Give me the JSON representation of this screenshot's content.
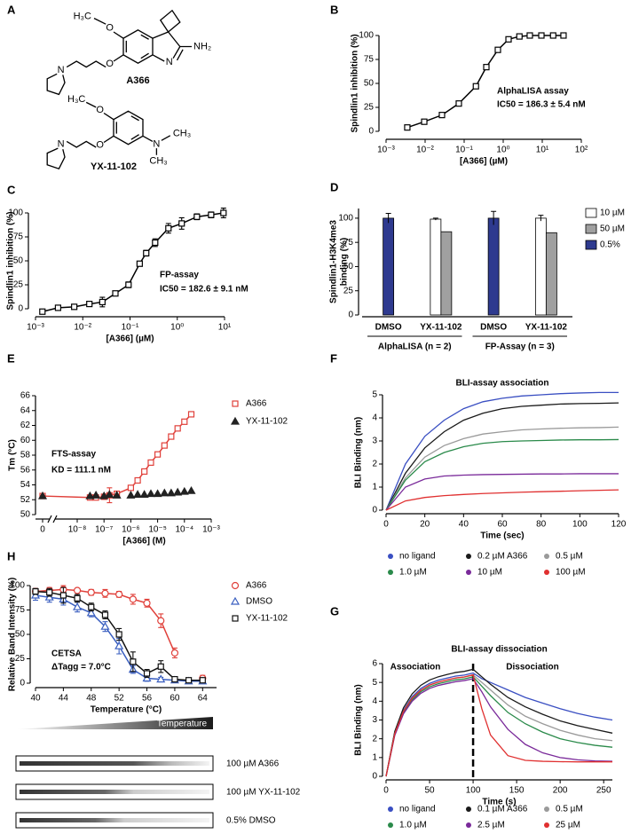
{
  "structures": {
    "label": "A",
    "compounds": [
      {
        "name": "A366",
        "atoms": [
          "H₃C",
          "O",
          "O",
          "N",
          "N",
          "NH₂"
        ]
      },
      {
        "name": "YX-11-102",
        "atoms": [
          "H₃C",
          "O",
          "O",
          "N",
          "N",
          "CH₃",
          "CH₃"
        ]
      }
    ]
  },
  "blot": {
    "gradient_label": "Temperature",
    "lanes": [
      "100 µM A366",
      "100 µM YX-11-102",
      "0.5% DMSO"
    ]
  },
  "chart_data": [
    {
      "label": "B",
      "type": "scatter",
      "xscale": "log",
      "xlim": [
        0.001,
        100
      ],
      "xticks": [
        {
          "value": 0.001,
          "label": "10⁻³"
        },
        {
          "value": 0.01,
          "label": "10⁻²"
        },
        {
          "value": 0.1,
          "label": "10⁻¹"
        },
        {
          "value": 1,
          "label": "10⁰"
        },
        {
          "value": 10,
          "label": "10¹"
        },
        {
          "value": 100,
          "label": "10²"
        }
      ],
      "ylim": [
        0,
        100
      ],
      "yticks": [
        0,
        25,
        50,
        75,
        100
      ],
      "xlabel": "[A366] (µM)",
      "ylabel": "Spindlin1 inhibition (%)",
      "annotations": [
        "AlphaLISA assay",
        "IC50 = 186.3 ± 5.4 nM"
      ],
      "series": [
        {
          "marker": "square",
          "line": true,
          "color": "#000000",
          "x": [
            0.0035,
            0.0095,
            0.027,
            0.073,
            0.2,
            0.37,
            0.73,
            1.37,
            2.6,
            4.8,
            9.5,
            19,
            35
          ],
          "values": [
            4,
            10,
            17,
            29,
            47,
            67,
            85,
            96,
            99,
            100,
            100,
            100,
            100
          ]
        }
      ]
    },
    {
      "label": "C",
      "type": "scatter",
      "xscale": "log",
      "xlim": [
        0.001,
        10
      ],
      "xticks": [
        {
          "value": 0.001,
          "label": "10⁻³"
        },
        {
          "value": 0.01,
          "label": "10⁻²"
        },
        {
          "value": 0.1,
          "label": "10⁻¹"
        },
        {
          "value": 1,
          "label": "10⁰"
        },
        {
          "value": 10,
          "label": "10¹"
        }
      ],
      "ylim": [
        0,
        100
      ],
      "yticks": [
        0,
        25,
        50,
        75,
        100
      ],
      "xlabel": "[A366] (µM)",
      "ylabel": "Spindlin1 inhibition (%)",
      "annotations": [
        "FP-assay",
        "IC50 = 182.6 ± 9.1 nM"
      ],
      "series": [
        {
          "marker": "square",
          "line": true,
          "color": "#000000",
          "x": [
            0.0014,
            0.003,
            0.0066,
            0.0138,
            0.026,
            0.049,
            0.093,
            0.16,
            0.22,
            0.34,
            0.65,
            1.24,
            2.6,
            5.2,
            9.5
          ],
          "values": [
            -3,
            1,
            2,
            5,
            7,
            16,
            25,
            47,
            58,
            69,
            84,
            89,
            96,
            98,
            100
          ],
          "errors": [
            2,
            1,
            1,
            2,
            5,
            2,
            3,
            2,
            3,
            4,
            5,
            6,
            3,
            3,
            5
          ]
        }
      ]
    },
    {
      "label": "D",
      "type": "bar",
      "categories": [
        "DMSO",
        "YX-11-102",
        "DMSO",
        "YX-11-102"
      ],
      "group_labels": [
        "AlphaLISA (n = 2)",
        "FP-Assay (n = 3)"
      ],
      "ylim": [
        0,
        110
      ],
      "yticks": [
        0,
        25,
        50,
        75,
        100
      ],
      "ylabel": [
        "Spindlin1-H3K4me3",
        "binding (%)"
      ],
      "series": [
        {
          "name": "10 µM",
          "color": "#ffffff",
          "values": [
            null,
            99,
            null,
            100
          ],
          "errors": [
            null,
            1,
            null,
            3
          ]
        },
        {
          "name": "50 µM",
          "color": "#a0a0a0",
          "values": [
            null,
            86,
            null,
            85
          ]
        },
        {
          "name": "0.5%",
          "color": "#2e3a8f",
          "values": [
            100,
            null,
            100,
            null
          ],
          "errors": [
            5,
            null,
            7,
            null
          ]
        }
      ]
    },
    {
      "label": "E",
      "type": "scatter",
      "xscale": "log",
      "axis_break": true,
      "xlim": [
        1e-08,
        0.001
      ],
      "xticks": [
        {
          "value": 0,
          "label": "0"
        },
        {
          "value": 1e-08,
          "label": "10⁻⁸"
        },
        {
          "value": 1e-07,
          "label": "10⁻⁷"
        },
        {
          "value": 1e-06,
          "label": "10⁻⁶"
        },
        {
          "value": 1e-05,
          "label": "10⁻⁵"
        },
        {
          "value": 0.0001,
          "label": "10⁻⁴"
        },
        {
          "value": 0.001,
          "label": "10⁻³"
        }
      ],
      "ylim": [
        50,
        66
      ],
      "yticks": [
        50,
        52,
        54,
        56,
        58,
        60,
        62,
        64,
        66
      ],
      "xlabel": "[A366] (M)",
      "ylabel": "Tm (°C)",
      "annotations": [
        "FTS-assay",
        "KD = 111.1 nM"
      ],
      "series": [
        {
          "name": "A366",
          "marker": "square",
          "line": true,
          "color": "#e0403a",
          "x": [
            0,
            3e-08,
            5e-08,
            1e-07,
            1.6e-07,
            3e-07,
            1e-06,
            1.8e-06,
            3.2e-06,
            5.6e-06,
            1e-05,
            1.8e-05,
            3.2e-05,
            5.6e-05,
            0.0001,
            0.00018
          ],
          "values": [
            52.5,
            52.3,
            52.3,
            52.4,
            52.6,
            52.8,
            53.6,
            54.6,
            55.8,
            57,
            58.1,
            59.3,
            60.5,
            61.6,
            62.5,
            63.5
          ],
          "errors": [
            0.2,
            0.2,
            0.2,
            0.3,
            1,
            0.3,
            0.3,
            0.3,
            0.2,
            0.2,
            0.2,
            0.2,
            0.2,
            0.2,
            0.2,
            0.2
          ]
        },
        {
          "name": "YX-11-102",
          "marker": "triangle",
          "filled": true,
          "color": "#222222",
          "x": [
            0,
            3e-08,
            5e-08,
            1e-07,
            1.6e-07,
            3e-07,
            1e-06,
            1.8e-06,
            3.2e-06,
            5.6e-06,
            1e-05,
            1.8e-05,
            3.2e-05,
            5.6e-05,
            0.0001,
            0.00018
          ],
          "values": [
            52.5,
            52.5,
            52.6,
            52.5,
            52.7,
            52.6,
            52.6,
            52.7,
            52.7,
            52.8,
            52.8,
            52.9,
            52.9,
            53,
            53.1,
            53.2
          ]
        }
      ]
    },
    {
      "label": "F",
      "type": "line",
      "title": "BLI-assay association",
      "xlim": [
        0,
        120
      ],
      "xticks": [
        0,
        20,
        40,
        60,
        80,
        100,
        120
      ],
      "ylim": [
        0,
        5
      ],
      "yticks": [
        0,
        1,
        2,
        3,
        4,
        5
      ],
      "xlabel": "Time (sec)",
      "ylabel": "BLI Binding (nm)",
      "x": [
        0,
        10,
        20,
        30,
        40,
        50,
        60,
        70,
        80,
        90,
        100,
        110,
        120
      ],
      "series": [
        {
          "name": "no ligand",
          "color": "#3a4fc2",
          "values": [
            0,
            2.0,
            3.2,
            3.9,
            4.4,
            4.7,
            4.85,
            4.95,
            5.0,
            5.05,
            5.08,
            5.1,
            5.1
          ]
        },
        {
          "name": "0.2 µM A366",
          "color": "#1a1a1a",
          "values": [
            0,
            1.6,
            2.7,
            3.4,
            3.9,
            4.2,
            4.4,
            4.5,
            4.55,
            4.6,
            4.62,
            4.63,
            4.65
          ]
        },
        {
          "name": "0.5 µM",
          "color": "#9a9a9a",
          "values": [
            0,
            1.4,
            2.3,
            2.8,
            3.1,
            3.3,
            3.4,
            3.48,
            3.52,
            3.55,
            3.57,
            3.58,
            3.6
          ]
        },
        {
          "name": "1.0 µM",
          "color": "#2a8a4a",
          "values": [
            0,
            1.3,
            2.1,
            2.5,
            2.75,
            2.9,
            2.97,
            3.0,
            3.02,
            3.04,
            3.05,
            3.05,
            3.06
          ]
        },
        {
          "name": "10 µM",
          "color": "#7a2a9a",
          "values": [
            0,
            1.0,
            1.35,
            1.48,
            1.52,
            1.54,
            1.55,
            1.56,
            1.57,
            1.57,
            1.58,
            1.58,
            1.58
          ]
        },
        {
          "name": "100 µM",
          "color": "#e03030",
          "values": [
            0,
            0.4,
            0.55,
            0.63,
            0.68,
            0.72,
            0.75,
            0.78,
            0.8,
            0.82,
            0.84,
            0.86,
            0.88
          ]
        }
      ]
    },
    {
      "label": "G",
      "type": "line",
      "title": "BLI-assay dissociation",
      "xlim": [
        0,
        260
      ],
      "xticks": [
        0,
        50,
        100,
        150,
        200,
        250
      ],
      "ylim": [
        0,
        6
      ],
      "yticks": [
        0,
        1,
        2,
        3,
        4,
        5,
        6
      ],
      "xlabel": "Time (s)",
      "ylabel": "BLI Binding (nm)",
      "phase_boundary": 100,
      "annotations": [
        "Association",
        "Dissociation"
      ],
      "x": [
        0,
        10,
        20,
        30,
        40,
        50,
        60,
        70,
        80,
        90,
        100,
        110,
        120,
        140,
        160,
        180,
        200,
        220,
        240,
        260
      ],
      "series": [
        {
          "name": "no ligand",
          "color": "#3a4fc2",
          "values": [
            0,
            2.31,
            3.52,
            4.24,
            4.68,
            4.95,
            5.12,
            5.23,
            5.34,
            5.39,
            5.5,
            5.2,
            5.0,
            4.6,
            4.2,
            3.9,
            3.6,
            3.35,
            3.15,
            3.0
          ]
        },
        {
          "name": "0.1 µM A366",
          "color": "#1a1a1a",
          "values": [
            0,
            2.39,
            3.65,
            4.39,
            4.85,
            5.13,
            5.3,
            5.42,
            5.53,
            5.59,
            5.7,
            5.3,
            4.9,
            4.2,
            3.7,
            3.3,
            2.95,
            2.7,
            2.5,
            2.3
          ]
        },
        {
          "name": "0.5 µM",
          "color": "#9a9a9a",
          "values": [
            0,
            2.27,
            3.46,
            4.16,
            4.59,
            4.86,
            5.02,
            5.13,
            5.24,
            5.29,
            5.4,
            5.0,
            4.6,
            3.8,
            3.2,
            2.8,
            2.45,
            2.2,
            2.0,
            1.9
          ]
        },
        {
          "name": "1.0 µM",
          "color": "#2a8a4a",
          "values": [
            0,
            2.23,
            3.39,
            4.08,
            4.51,
            4.77,
            4.93,
            5.04,
            5.14,
            5.19,
            5.3,
            4.8,
            4.3,
            3.4,
            2.8,
            2.35,
            2.0,
            1.8,
            1.65,
            1.55
          ]
        },
        {
          "name": "2.5 µM",
          "color": "#7a2a9a",
          "values": [
            0,
            2.18,
            3.33,
            4.0,
            4.42,
            4.68,
            4.84,
            4.94,
            5.04,
            5.1,
            5.2,
            4.5,
            3.7,
            2.5,
            1.7,
            1.25,
            1.0,
            0.88,
            0.82,
            0.8
          ]
        },
        {
          "name": "25 µM",
          "color": "#e03030",
          "values": [
            0,
            2.27,
            3.46,
            4.16,
            4.59,
            4.86,
            5.02,
            5.13,
            5.24,
            5.29,
            5.4,
            3.6,
            2.2,
            1.1,
            0.85,
            0.8,
            0.78,
            0.77,
            0.77,
            0.77
          ]
        }
      ]
    },
    {
      "label": "H",
      "type": "scatter",
      "xlim": [
        40,
        66
      ],
      "xticks": [
        40,
        44,
        48,
        52,
        56,
        60,
        64
      ],
      "ylim": [
        0,
        100
      ],
      "yticks": [
        0,
        25,
        50,
        75,
        100
      ],
      "xlabel": "Temperature (°C)",
      "ylabel": "Relative Band Intensity (%)",
      "annotations": [
        "CETSA",
        "ΔTagg = 7.0°C"
      ],
      "x": [
        40,
        42,
        44,
        46,
        48,
        50,
        52,
        54,
        56,
        58,
        60,
        62,
        64
      ],
      "series": [
        {
          "name": "A366",
          "marker": "circle",
          "line": true,
          "color": "#e0403a",
          "values": [
            94,
            95,
            96,
            95,
            93,
            92,
            91,
            86,
            82,
            64,
            31,
            null,
            5
          ],
          "errors": [
            3,
            3,
            4,
            2,
            3,
            4,
            3,
            5,
            4,
            7,
            5,
            null,
            3
          ]
        },
        {
          "name": "DMSO",
          "marker": "triangle",
          "line": true,
          "color": "#3a5fc0",
          "values": [
            90,
            88,
            86,
            78,
            72,
            58,
            38,
            14,
            5,
            4,
            3,
            2,
            2
          ],
          "errors": [
            5,
            5,
            6,
            5,
            4,
            5,
            8,
            4,
            3,
            2,
            2,
            1,
            2
          ]
        },
        {
          "name": "YX-11-102",
          "marker": "square",
          "line": true,
          "color": "#111111",
          "values": [
            94,
            93,
            90,
            87,
            78,
            70,
            50,
            22,
            10,
            17,
            4,
            3,
            3
          ],
          "errors": [
            3,
            4,
            8,
            4,
            4,
            4,
            6,
            10,
            4,
            6,
            2,
            2,
            2
          ]
        }
      ]
    }
  ]
}
